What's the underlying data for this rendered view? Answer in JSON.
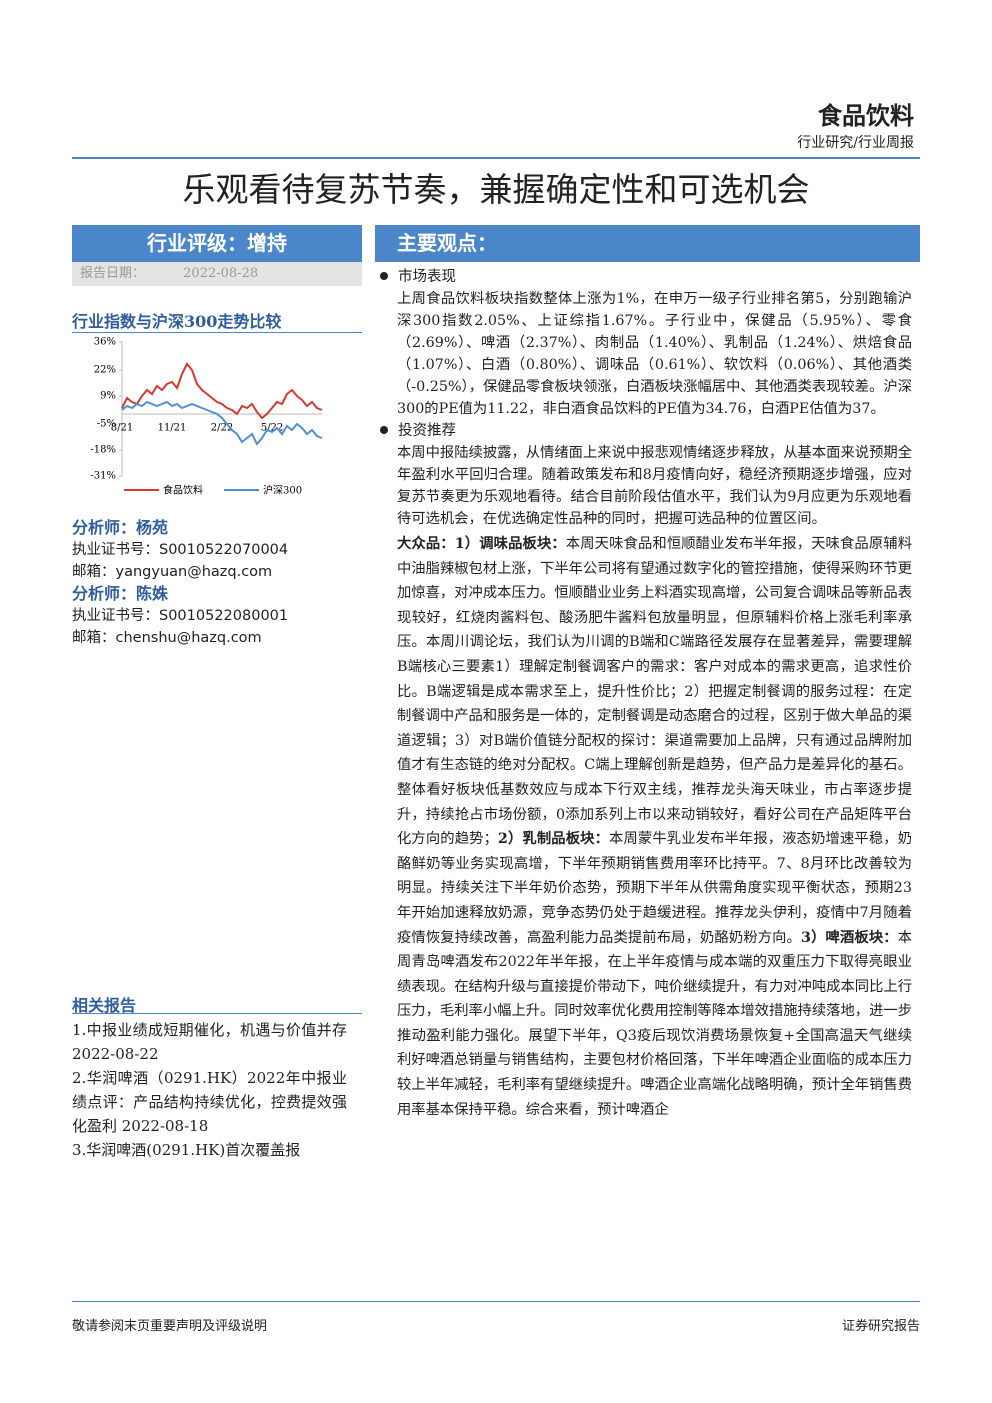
{
  "header": {
    "sector": "食品饮料",
    "type": "行业研究/行业周报"
  },
  "title": "乐观看待复苏节奏，兼握确定性和可选机会",
  "rating": {
    "label": "行业评级：增持",
    "date_label": "报告日期：",
    "date": "2022-08-28"
  },
  "chart_title": "行业指数与沪深300走势比较",
  "chart_data": {
    "type": "line",
    "categories": [
      "8/21",
      null,
      null,
      null,
      null,
      null,
      null,
      null,
      null,
      null,
      "11/21",
      null,
      null,
      null,
      null,
      null,
      null,
      null,
      null,
      null,
      "2/22",
      null,
      null,
      null,
      null,
      null,
      null,
      null,
      null,
      null,
      "5/22",
      null,
      null,
      null,
      null,
      null,
      null,
      null,
      null,
      null,
      null
    ],
    "ylim": [
      -31,
      36
    ],
    "yticks": [
      {
        "value": 36,
        "label": "36%"
      },
      {
        "value": 22,
        "label": "22%"
      },
      {
        "value": 9,
        "label": "9%"
      },
      {
        "value": -5,
        "label": "-5%"
      },
      {
        "value": -18,
        "label": "-18%"
      },
      {
        "value": -31,
        "label": "-31%"
      }
    ],
    "series": [
      {
        "name": "食品饮料",
        "color": "#d9382f",
        "values": [
          3,
          8,
          6,
          5,
          9,
          12,
          10,
          14,
          12,
          15,
          16,
          13,
          20,
          25,
          22,
          15,
          12,
          10,
          8,
          6,
          5,
          3,
          2,
          0,
          4,
          3,
          5,
          1,
          -2,
          0,
          3,
          6,
          5,
          10,
          12,
          9,
          7,
          4,
          6,
          3,
          2
        ]
      },
      {
        "name": "沪深300",
        "color": "#4f8fd6",
        "values": [
          2,
          4,
          3,
          5,
          4,
          6,
          5,
          4,
          5,
          6,
          4,
          5,
          3,
          4,
          5,
          4,
          3,
          2,
          1,
          0,
          -2,
          -5,
          -8,
          -10,
          -14,
          -12,
          -10,
          -15,
          -12,
          -8,
          -9,
          -7,
          -10,
          -6,
          -8,
          -5,
          -7,
          -10,
          -8,
          -11,
          -12
        ]
      }
    ]
  },
  "analysts": [
    {
      "name": "分析师：杨苑",
      "cert_label": "执业证书号：",
      "cert": "S0010522070004",
      "email_label": "邮箱：",
      "email": "yangyuan@hazq.com"
    },
    {
      "name": "分析师：陈姝",
      "cert_label": "执业证书号：",
      "cert": "S0010522080001",
      "email_label": "邮箱：",
      "email": "chenshu@hazq.com"
    }
  ],
  "related": {
    "title": "相关报告",
    "items": [
      "1.中报业绩成短期催化，机遇与价值并存 2022-08-22",
      "2.华润啤酒（0291.HK）2022年中报业绩点评：产品结构持续优化，控费提效强化盈利 2022-08-18",
      "3.华润啤酒(0291.HK)首次覆盖报"
    ]
  },
  "views": {
    "title": "主要观点：",
    "sections": [
      {
        "heading": "市场表现",
        "text": "上周食品饮料板块指数整体上涨为1%，在申万一级子行业排名第5，分别跑输沪深300指数2.05%、上证综指1.67%。子行业中，保健品（5.95%）、零食（2.69%）、啤酒（2.37%）、肉制品（1.40%）、乳制品（1.24%）、烘焙食品（1.07%）、白酒（0.80%）、调味品（0.61%）、软饮料（0.06%）、其他酒类（-0.25%），保健品零食板块领涨，白酒板块涨幅居中、其他酒类表现较差。沪深300的PE值为11.22，非白酒食品饮料的PE值为34.76，白酒PE估值为37。"
      },
      {
        "heading": "投资推荐",
        "text": "本周中报陆续披露，从情绪面上来说中报悲观情绪逐步释放，从基本面来说预期全年盈利水平回归合理。随着政策发布和8月疫情向好，稳经济预期逐步增强，应对复苏节奏更为乐观地看待。结合目前阶段估值水平，我们认为9月应更为乐观地看待可选机会，在优选确定性品种的同时，把握可选品种的位置区间。"
      }
    ],
    "runs": [
      {
        "strong": "大众品：1）调味品板块：",
        "text": "本周天味食品和恒顺醋业发布半年报，天味食品原辅料中油脂辣椒包材上涨，下半年公司将有望通过数字化的管控措施，使得采购环节更加惊喜，对冲成本压力。恒顺醋业业务上料酒实现高增，公司复合调味品等新品表现较好，红烧肉酱料包、酸汤肥牛酱料包放量明显，但原辅料价格上涨毛利率承压。本周川调论坛，我们认为川调的B端和C端路径发展存在显著差异，需要理解B端核心三要素1）理解定制餐调客户的需求：客户对成本的需求更高，追求性价比。B端逻辑是成本需求至上，提升性价比；2）把握定制餐调的服务过程：在定制餐调中产品和服务是一体的，定制餐调是动态磨合的过程，区别于做大单品的渠道逻辑；3）对B端价值链分配权的探讨：渠道需要加上品牌，只有通过品牌附加值才有生态链的绝对分配权。C端上理解创新是趋势，但产品力是差异化的基石。整体看好板块低基数效应与成本下行双主线，推荐龙头海天味业，市占率逐步提升，持续抢占市场份额，0添加系列上市以来动销较好，看好公司在产品矩阵平台化方向的趋势；"
      },
      {
        "strong": "2）乳制品板块：",
        "text": "本周蒙牛乳业发布半年报，液态奶增速平稳，奶酪鲜奶等业务实现高增，下半年预期销售费用率环比持平。7、8月环比改善较为明显。持续关注下半年奶价态势，预期下半年从供需角度实现平衡状态，预期23年开始加速释放奶源，竞争态势仍处于趋缓进程。推荐龙头伊利，疫情中7月随着疫情恢复持续改善，高盈利能力品类提前布局，奶酪奶粉方向。"
      },
      {
        "strong": "3）啤酒板块：",
        "text": "本周青岛啤酒发布2022年半年报，在上半年疫情与成本端的双重压力下取得亮眼业绩表现。在结构升级与直接提价带动下，吨价继续提升，有力对冲吨成本同比上行压力，毛利率小幅上升。同时效率优化费用控制等降本增效措施持续落地，进一步推动盈利能力强化。展望下半年，Q3疫后现饮消费场景恢复+全国高温天气继续利好啤酒总销量与销售结构，主要包材价格回落，下半年啤酒企业面临的成本压力较上半年减轻，毛利率有望继续提升。啤酒企业高端化战略明确，预计全年销售费用率基本保持平稳。综合来看，预计啤酒企"
      }
    ]
  },
  "footer": {
    "left": "敬请参阅末页重要声明及评级说明",
    "right": "证券研究报告"
  }
}
